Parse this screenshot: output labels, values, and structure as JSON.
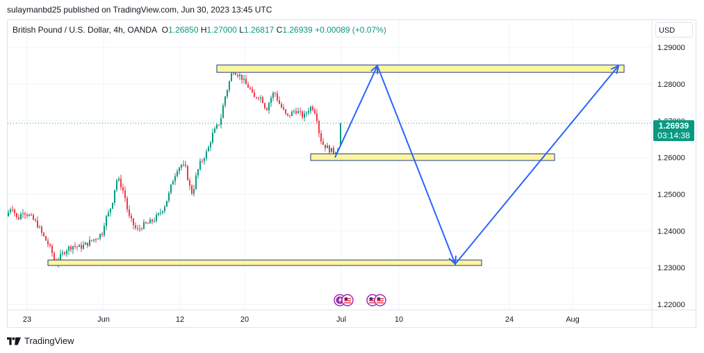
{
  "header": {
    "publisher_line": "sulaymanbd25 published on TradingView.com, Jun 30, 2023 13:45 UTC"
  },
  "symbol": {
    "name": "British Pound / U.S. Dollar, 4h, OANDA",
    "o_label": "O",
    "o": "1.26850",
    "h_label": "H",
    "h": "1.27000",
    "l_label": "L",
    "l": "1.26817",
    "c_label": "C",
    "c": "1.26939",
    "change": "+0.00089 (+0.07%)"
  },
  "currency": "USD",
  "last_price": {
    "price": "1.26939",
    "countdown": "03:14:38"
  },
  "footer": {
    "brand": "TradingView"
  },
  "colors": {
    "up": "#089981",
    "down": "#f23645",
    "zone_fill": "#fff59d",
    "zone_stroke": "#1e3a8a",
    "arrow": "#2962ff"
  },
  "event_icons": [
    "lightning-flag-icon",
    "us-flag-icon",
    "us-flag-icon",
    "us-flag-icon"
  ],
  "chart_data": {
    "type": "candlestick",
    "symbol": "GBPUSD",
    "interval": "4h",
    "x_tick_labels": [
      "23",
      "Jun",
      "12",
      "20",
      "Jul",
      "10",
      "24",
      "Aug"
    ],
    "y_tick_labels": [
      "1.29000",
      "1.28000",
      "1.27000",
      "1.26000",
      "1.25000",
      "1.24000",
      "1.23000",
      "1.22000"
    ],
    "y_ticks": [
      1.29,
      1.28,
      1.27,
      1.26,
      1.25,
      1.24,
      1.23,
      1.22
    ],
    "ylim": [
      1.2185,
      1.2925
    ],
    "grid": true,
    "current_price": 1.26939,
    "price_path": [
      [
        0,
        1.244
      ],
      [
        8,
        1.247
      ],
      [
        16,
        1.243
      ],
      [
        24,
        1.2455
      ],
      [
        34,
        1.244
      ],
      [
        44,
        1.242
      ],
      [
        52,
        1.239
      ],
      [
        60,
        1.2365
      ],
      [
        66,
        1.234
      ],
      [
        70,
        1.231
      ],
      [
        78,
        1.233
      ],
      [
        86,
        1.235
      ],
      [
        96,
        1.236
      ],
      [
        106,
        1.2355
      ],
      [
        116,
        1.2365
      ],
      [
        124,
        1.2375
      ],
      [
        132,
        1.2385
      ],
      [
        138,
        1.2395
      ],
      [
        142,
        1.243
      ],
      [
        148,
        1.245
      ],
      [
        154,
        1.249
      ],
      [
        158,
        1.254
      ],
      [
        163,
        1.2535
      ],
      [
        170,
        1.25
      ],
      [
        176,
        1.244
      ],
      [
        182,
        1.242
      ],
      [
        188,
        1.24
      ],
      [
        196,
        1.2415
      ],
      [
        204,
        1.242
      ],
      [
        212,
        1.243
      ],
      [
        220,
        1.2445
      ],
      [
        228,
        1.247
      ],
      [
        234,
        1.25
      ],
      [
        240,
        1.254
      ],
      [
        246,
        1.257
      ],
      [
        252,
        1.258
      ],
      [
        258,
        1.257
      ],
      [
        264,
        1.252
      ],
      [
        268,
        1.25
      ],
      [
        272,
        1.254
      ],
      [
        278,
        1.258
      ],
      [
        284,
        1.26
      ],
      [
        290,
        1.262
      ],
      [
        296,
        1.266
      ],
      [
        302,
        1.268
      ],
      [
        308,
        1.27
      ],
      [
        314,
        1.276
      ],
      [
        320,
        1.28
      ],
      [
        326,
        1.284
      ],
      [
        332,
        1.283
      ],
      [
        338,
        1.282
      ],
      [
        344,
        1.28
      ],
      [
        350,
        1.279
      ],
      [
        356,
        1.276
      ],
      [
        362,
        1.277
      ],
      [
        368,
        1.276
      ],
      [
        374,
        1.273
      ],
      [
        380,
        1.276
      ],
      [
        386,
        1.278
      ],
      [
        392,
        1.275
      ],
      [
        398,
        1.273
      ],
      [
        404,
        1.271
      ],
      [
        410,
        1.272
      ],
      [
        416,
        1.273
      ],
      [
        422,
        1.272
      ],
      [
        428,
        1.271
      ],
      [
        434,
        1.273
      ],
      [
        440,
        1.274
      ],
      [
        446,
        1.272
      ],
      [
        450,
        1.267
      ],
      [
        454,
        1.264
      ],
      [
        460,
        1.263
      ],
      [
        466,
        1.262
      ],
      [
        472,
        1.2615
      ],
      [
        478,
        1.263
      ],
      [
        482,
        1.267
      ],
      [
        486,
        1.2694
      ]
    ],
    "zones": [
      {
        "name": "upper-resistance-zone",
        "x_from": 312,
        "x_to": 898,
        "price_top": 1.2852,
        "price_bottom": 1.2832
      },
      {
        "name": "middle-support-zone",
        "x_from": 447,
        "x_to": 798,
        "price_top": 1.261,
        "price_bottom": 1.2592
      },
      {
        "name": "lower-support-zone",
        "x_from": 69,
        "x_to": 693,
        "price_top": 1.2321,
        "price_bottom": 1.2306
      }
    ],
    "projection_path": [
      [
        482,
        1.26
      ],
      [
        543,
        1.285
      ],
      [
        655,
        1.231
      ],
      [
        890,
        1.285
      ]
    ]
  }
}
